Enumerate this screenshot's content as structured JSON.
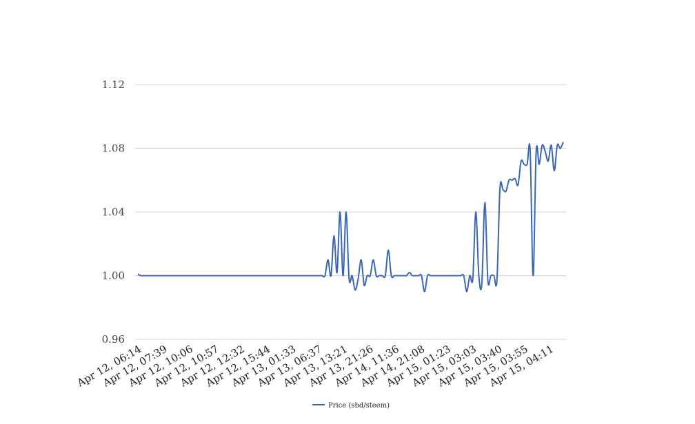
{
  "chart_data": {
    "type": "line",
    "title": "",
    "xlabel": "",
    "ylabel": "",
    "ylim": [
      0.96,
      1.12
    ],
    "y_ticks": [
      "0.96",
      "1.00",
      "1.04",
      "1.08",
      "1.12"
    ],
    "grid": "horizontal",
    "legend_position": "bottom-center",
    "x_tick_labels": [
      "Apr 12, 06:14",
      "Apr 12, 07:39",
      "Apr 12, 10:06",
      "Apr 12, 10:57",
      "Apr 12, 12:32",
      "Apr 12, 15:44",
      "Apr 13, 01:33",
      "Apr 13, 06:37",
      "Apr 13, 13:21",
      "Apr 13, 21:26",
      "Apr 14, 11:36",
      "Apr 14, 21:08",
      "Apr 15, 01:23",
      "Apr 15, 03:03",
      "Apr 15, 03:40",
      "Apr 15, 03:55",
      "Apr 15, 04:11"
    ],
    "series": [
      {
        "name": "Price (sbd/steem)",
        "color": "#3a66b7",
        "values": [
          1.001,
          1.0,
          1.0,
          1.0,
          1.0,
          1.0,
          1.0,
          1.0,
          1.0,
          1.0,
          1.0,
          1.0,
          1.0,
          1.0,
          1.0,
          1.0,
          1.0,
          1.0,
          1.0,
          1.0,
          1.0,
          1.0,
          1.0,
          1.0,
          1.0,
          1.0,
          1.0,
          1.0,
          1.0,
          1.0,
          1.0,
          1.0,
          1.0,
          1.0,
          1.0,
          1.0,
          1.0,
          1.0,
          1.0,
          1.0,
          1.0,
          1.0,
          1.0,
          1.0,
          1.0,
          1.0,
          1.0,
          1.0,
          1.0,
          1.0,
          1.0,
          1.0,
          1.0,
          1.0,
          1.0,
          1.0,
          1.0,
          1.0,
          1.0,
          1.0,
          1.0,
          1.0,
          1.0,
          1.01,
          1.0,
          1.025,
          1.002,
          1.04,
          1.0,
          1.04,
          0.998,
          1.0,
          0.991,
          0.998,
          1.01,
          0.994,
          1.0,
          1.0,
          1.01,
          1.0,
          1.0,
          1.0,
          1.0,
          1.016,
          1.0,
          1.0,
          1.0,
          1.0,
          1.0,
          1.0,
          1.002,
          1.0,
          1.0,
          1.0,
          1.0,
          0.99,
          1.0,
          1.0,
          1.0,
          1.0,
          1.0,
          1.0,
          1.0,
          1.0,
          1.0,
          1.0,
          1.0,
          1.0,
          1.0,
          0.99,
          1.0,
          0.998,
          1.04,
          1.0,
          0.995,
          1.046,
          0.997,
          1.0,
          1.0,
          0.997,
          1.055,
          1.054,
          1.053,
          1.06,
          1.06,
          1.061,
          1.057,
          1.072,
          1.07,
          1.07,
          1.079,
          1.0,
          1.078,
          1.07,
          1.082,
          1.078,
          1.072,
          1.082,
          1.066,
          1.082,
          1.08,
          1.084
        ]
      }
    ]
  }
}
